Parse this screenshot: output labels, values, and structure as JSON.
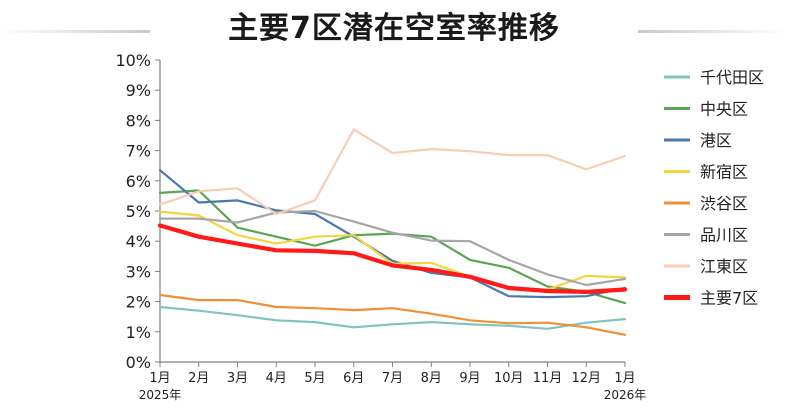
{
  "title": "主要7区潜在空室率推移",
  "chart_data": {
    "type": "line",
    "title": "主要7区潜在空室率推移",
    "xlabel": "",
    "ylabel": "",
    "categories": [
      "1月",
      "2月",
      "3月",
      "4月",
      "5月",
      "6月",
      "7月",
      "8月",
      "9月",
      "10月",
      "11月",
      "12月",
      "1月"
    ],
    "year_labels": [
      {
        "index": 0,
        "text": "2025年"
      },
      {
        "index": 12,
        "text": "2026年"
      }
    ],
    "y_ticks": [
      "0%",
      "1%",
      "2%",
      "3%",
      "4%",
      "5%",
      "6%",
      "7%",
      "8%",
      "9%",
      "10%"
    ],
    "ylim": [
      0,
      10
    ],
    "unit": "%",
    "grid": false,
    "legend_position": "right",
    "series": [
      {
        "name": "千代田区",
        "color": "#7fc4bd",
        "width": 2.2,
        "values": [
          1.82,
          1.7,
          1.55,
          1.38,
          1.32,
          1.15,
          1.25,
          1.32,
          1.25,
          1.2,
          1.1,
          1.3,
          1.42
        ]
      },
      {
        "name": "中央区",
        "color": "#5aa552",
        "width": 2.2,
        "values": [
          5.6,
          5.68,
          4.45,
          4.15,
          3.85,
          4.2,
          4.25,
          4.15,
          3.38,
          3.12,
          2.5,
          2.32,
          1.95
        ]
      },
      {
        "name": "港区",
        "color": "#4a78ad",
        "width": 2.2,
        "values": [
          6.35,
          5.28,
          5.35,
          5.02,
          4.9,
          4.15,
          3.35,
          2.95,
          2.8,
          2.18,
          2.15,
          2.18,
          2.45
        ]
      },
      {
        "name": "新宿区",
        "color": "#f2d640",
        "width": 2.2,
        "values": [
          4.98,
          4.85,
          4.2,
          3.92,
          4.15,
          4.2,
          3.25,
          3.28,
          2.82,
          2.42,
          2.4,
          2.85,
          2.8
        ]
      },
      {
        "name": "渋谷区",
        "color": "#ef9035",
        "width": 2.2,
        "values": [
          2.22,
          2.05,
          2.05,
          1.82,
          1.78,
          1.72,
          1.78,
          1.6,
          1.38,
          1.28,
          1.3,
          1.15,
          0.9
        ]
      },
      {
        "name": "品川区",
        "color": "#a6a6a6",
        "width": 2.2,
        "values": [
          4.75,
          4.75,
          4.62,
          4.95,
          5.0,
          4.65,
          4.28,
          4.02,
          4.0,
          3.38,
          2.9,
          2.55,
          2.75
        ]
      },
      {
        "name": "江東区",
        "color": "#f8cdb4",
        "width": 2.2,
        "values": [
          5.22,
          5.65,
          5.75,
          4.9,
          5.35,
          7.7,
          6.92,
          7.05,
          6.98,
          6.85,
          6.85,
          6.38,
          6.82
        ]
      },
      {
        "name": "主要7区",
        "color": "#ff1a1a",
        "width": 4.2,
        "values": [
          4.52,
          4.15,
          3.92,
          3.7,
          3.68,
          3.6,
          3.2,
          3.05,
          2.82,
          2.45,
          2.35,
          2.32,
          2.4
        ]
      }
    ]
  }
}
